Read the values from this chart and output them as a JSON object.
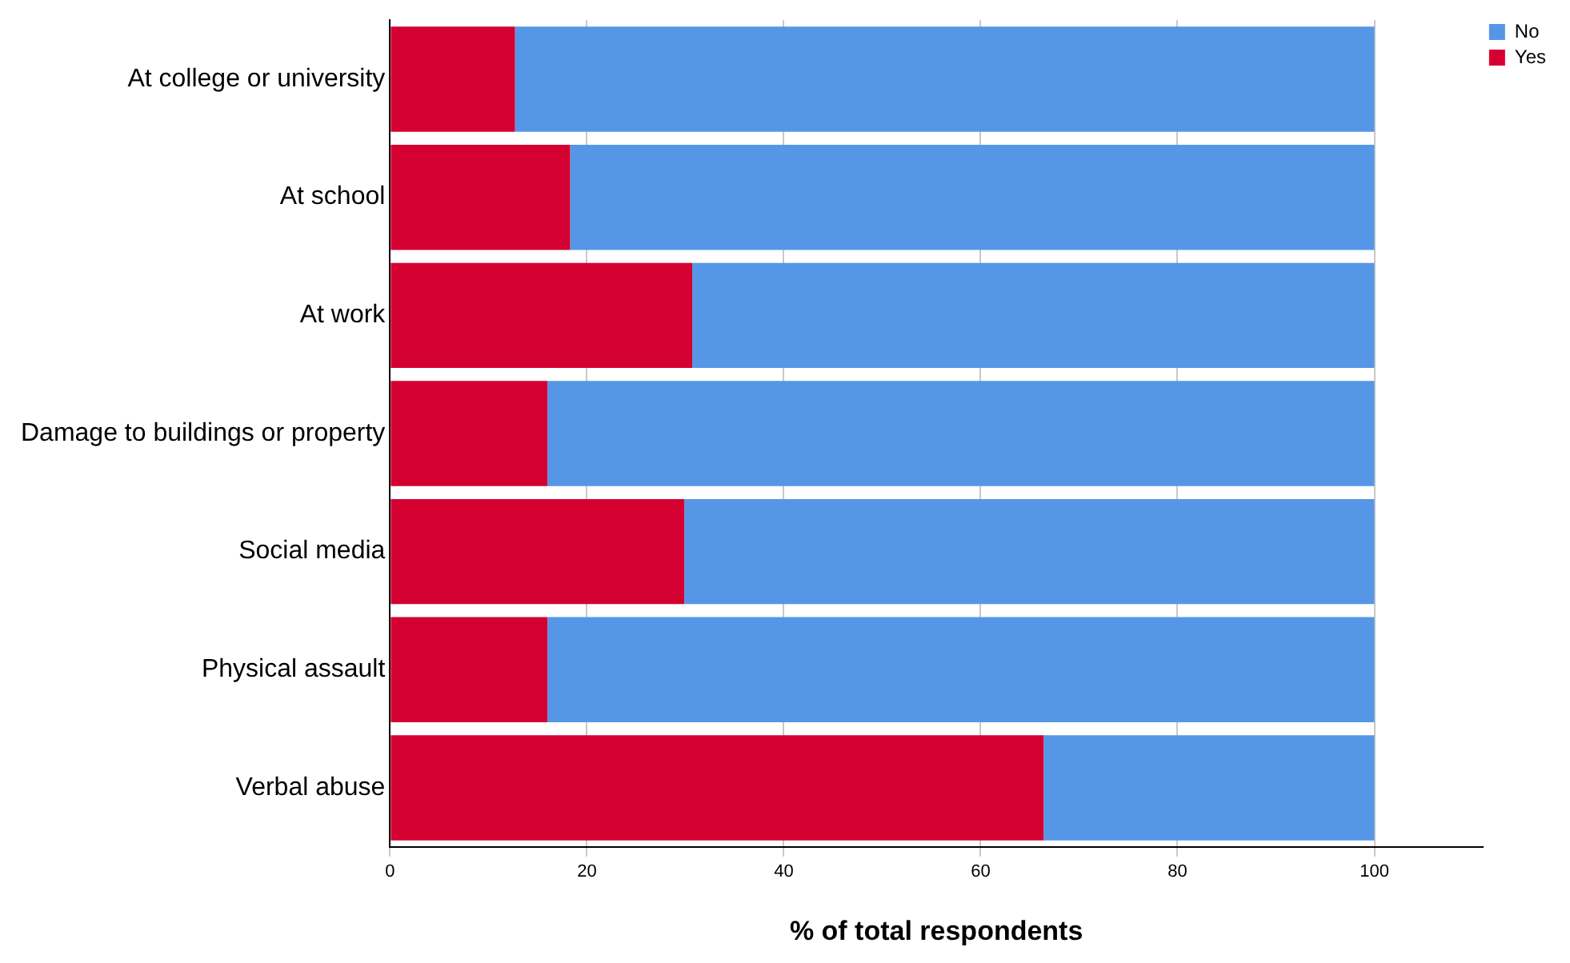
{
  "chart_data": {
    "type": "bar",
    "orientation": "horizontal",
    "stacked": true,
    "xlabel": "% of total respondents",
    "categories": [
      "At college or university",
      "At school",
      "At work",
      "Damage to buildings or property",
      "Social media",
      "Physical assault",
      "Verbal abuse"
    ],
    "series": [
      {
        "name": "Yes",
        "color": "#d50032",
        "values": [
          12.7,
          18.3,
          30.7,
          16.0,
          29.9,
          16.0,
          66.4
        ]
      },
      {
        "name": "No",
        "color": "#5597e6",
        "values": [
          87.3,
          81.7,
          69.3,
          84.0,
          70.1,
          84.0,
          33.6
        ]
      }
    ],
    "xlim": [
      0,
      111
    ],
    "xticks": [
      0,
      20,
      40,
      60,
      80,
      100
    ],
    "grid": "x",
    "legend": "top right"
  }
}
